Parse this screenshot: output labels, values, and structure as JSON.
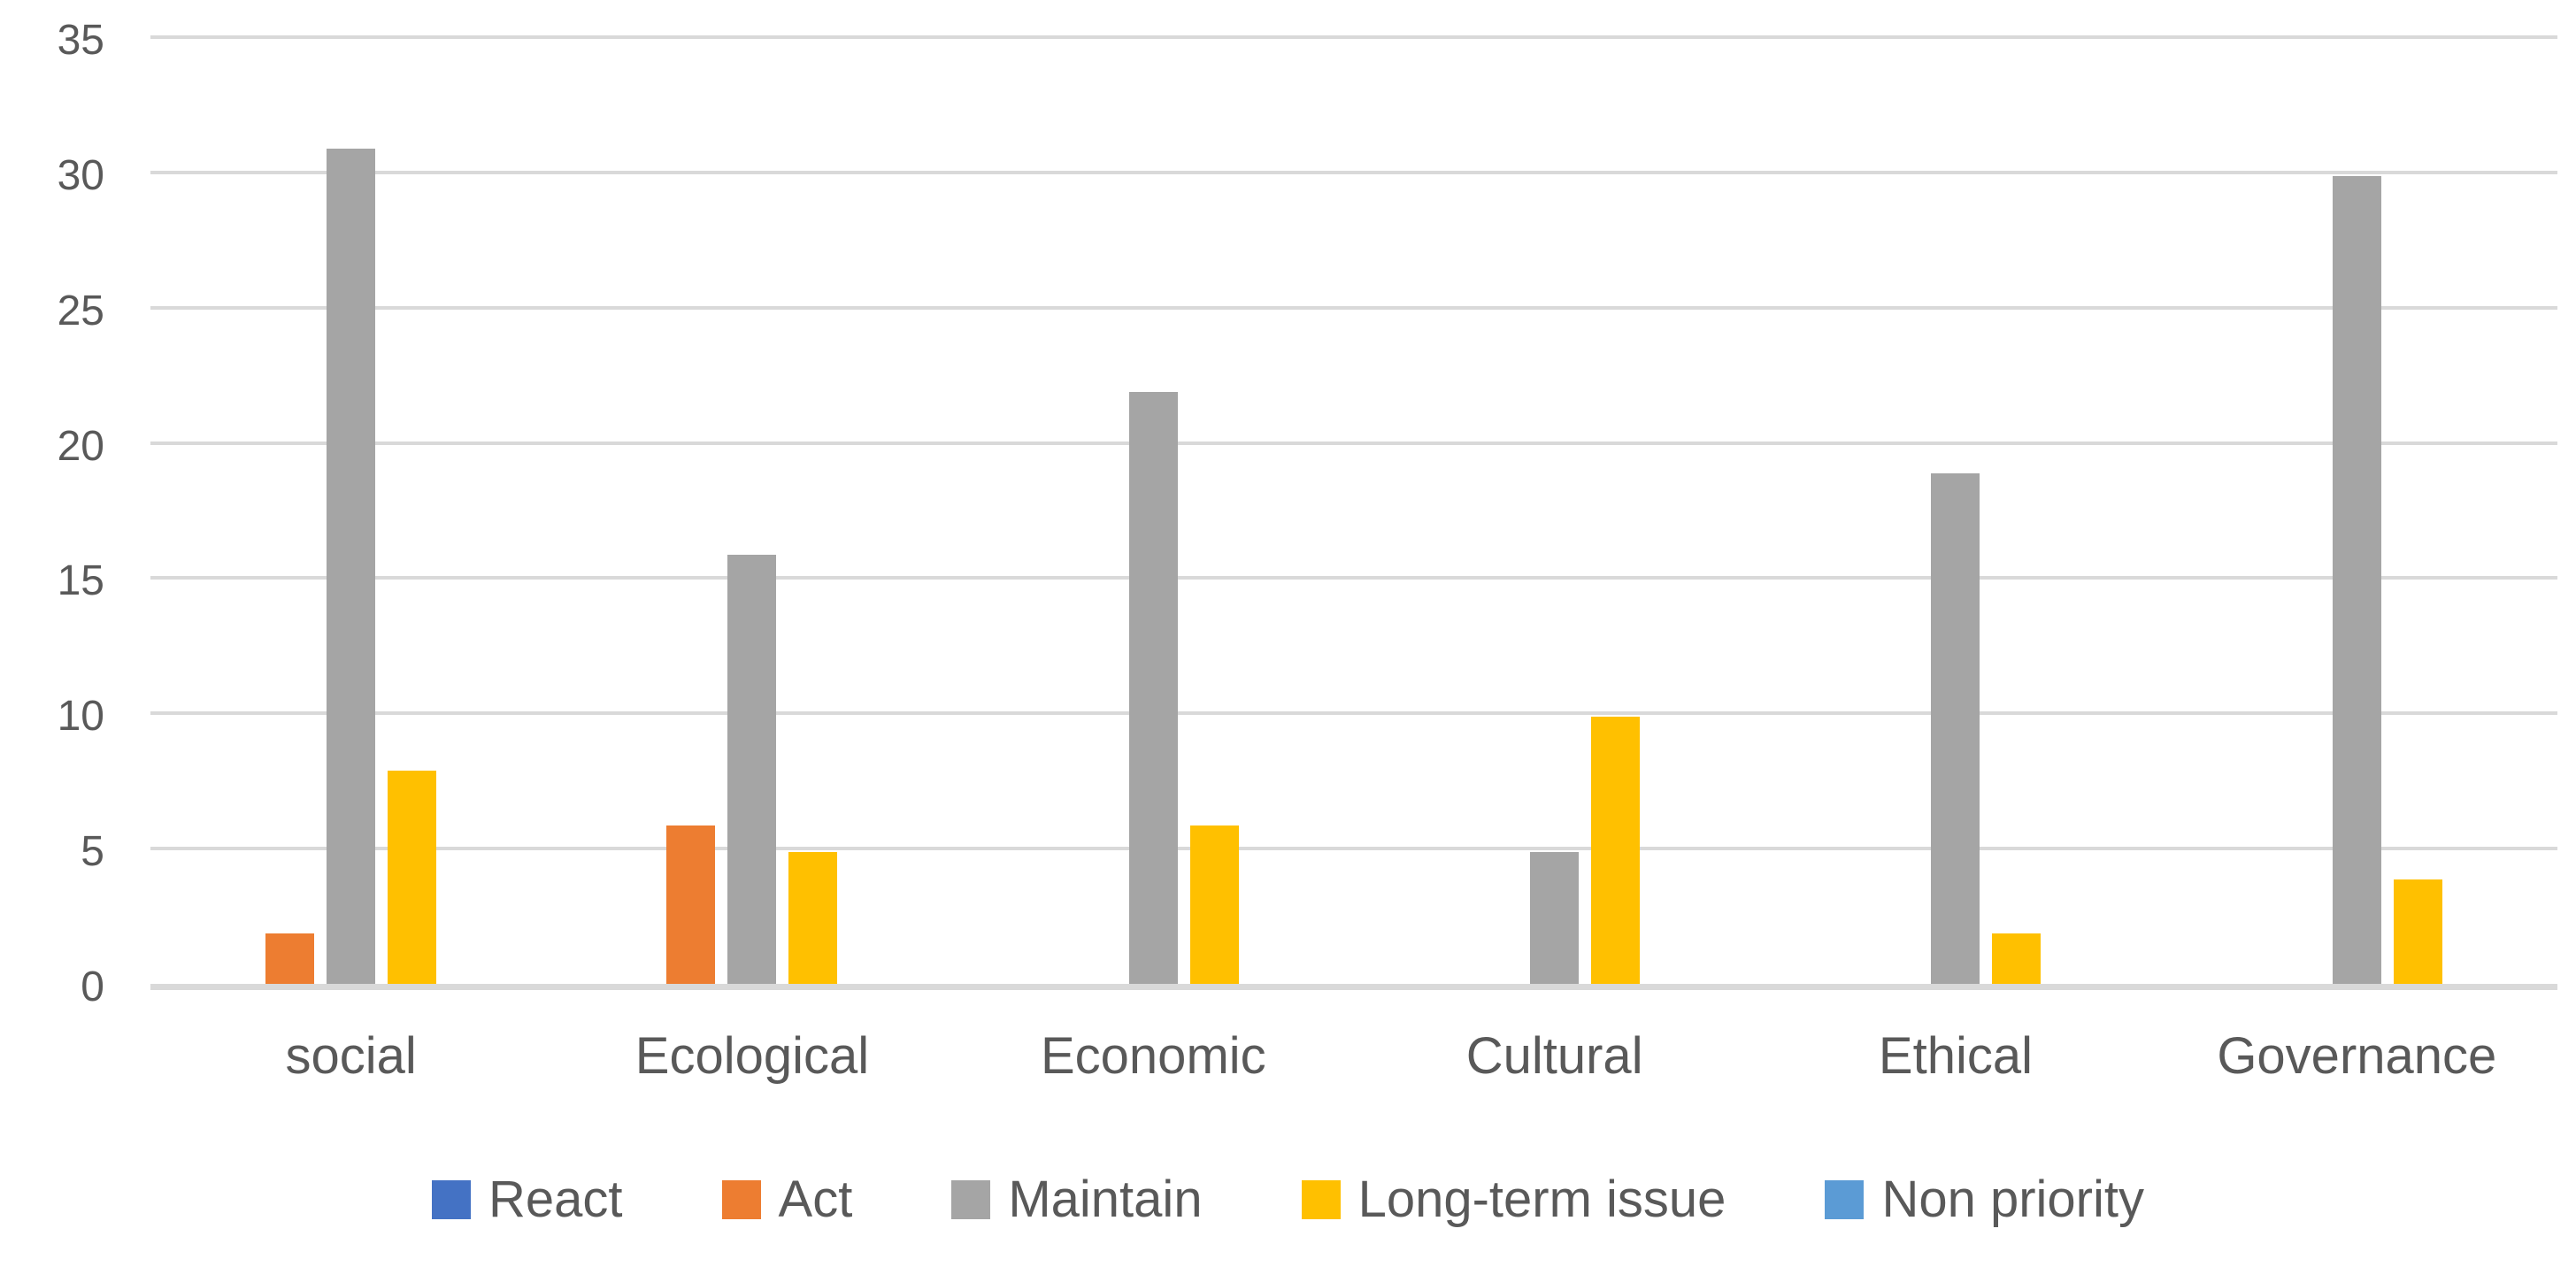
{
  "chart_data": {
    "type": "bar",
    "title": "",
    "xlabel": "",
    "ylabel": "",
    "categories": [
      "social",
      "Ecological",
      "Economic",
      "Cultural",
      "Ethical",
      "Governance"
    ],
    "series": [
      {
        "name": "React",
        "color": "#4472C4",
        "values": [
          0,
          0,
          0,
          0,
          0,
          0
        ]
      },
      {
        "name": "Act",
        "color": "#ED7D31",
        "values": [
          2,
          6,
          0,
          0,
          0,
          0
        ]
      },
      {
        "name": "Maintain",
        "color": "#A5A5A5",
        "values": [
          31,
          16,
          22,
          5,
          19,
          30
        ]
      },
      {
        "name": "Long-term issue",
        "color": "#FFC000",
        "values": [
          8,
          5,
          6,
          10,
          2,
          4
        ]
      },
      {
        "name": "Non priority",
        "color": "#5B9BD5",
        "values": [
          0,
          0,
          0,
          0,
          0,
          0
        ]
      }
    ],
    "ylim": [
      0,
      35
    ],
    "yticks": [
      0,
      5,
      10,
      15,
      20,
      25,
      30,
      35
    ],
    "grid": true,
    "legend_position": "bottom"
  },
  "colors": {
    "background": "#FFFFFF",
    "text": "#595959",
    "gridline": "#D9D9D9",
    "axis_line": "#D9D9D9"
  }
}
